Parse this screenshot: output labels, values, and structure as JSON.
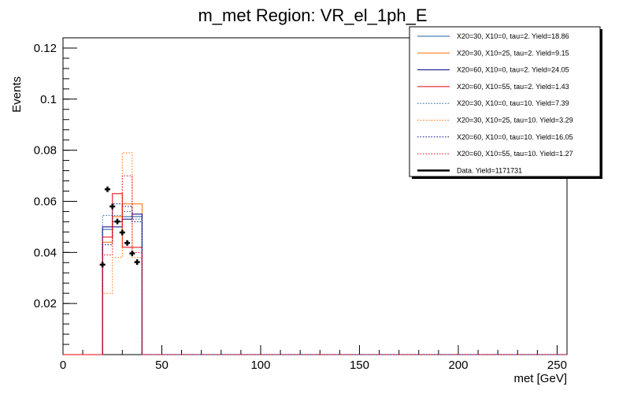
{
  "chart_data": {
    "type": "histogram",
    "title": "m_met Region: VR_el_1ph_E",
    "xlabel": "met [GeV]",
    "ylabel": "Events",
    "xlim": [
      0,
      255
    ],
    "ylim": [
      0,
      0.124
    ],
    "x_ticks": [
      0,
      50,
      100,
      150,
      200,
      250
    ],
    "x_tick_labels": [
      "0",
      "50",
      "100",
      "150",
      "200",
      "250"
    ],
    "y_ticks": [
      0.02,
      0.04,
      0.06,
      0.08,
      0.1,
      0.12
    ],
    "y_tick_labels": [
      "0.02",
      "0.04",
      "0.06",
      "0.08",
      "0.1",
      "0.12"
    ],
    "bin_edges": [
      20,
      25,
      30,
      35,
      40
    ],
    "series": [
      {
        "name": "X20=30, X10=0, tau=2. Yield=18.86",
        "color": "#1f5fa0",
        "style": "solid",
        "values": [
          0.049,
          0.052,
          0.054,
          0.054
        ]
      },
      {
        "name": "X20=30, X10=25, tau=2. Yield=9.15",
        "color": "#ff6a00",
        "style": "solid",
        "values": [
          0.044,
          0.054,
          0.059,
          0.059
        ]
      },
      {
        "name": "X20=60, X10=0, tau=2. Yield=24.05",
        "color": "#000080",
        "style": "solid",
        "values": [
          0.05,
          0.05,
          0.053,
          0.055
        ]
      },
      {
        "name": "X20=60, X10=55, tau=2. Yield=1.43",
        "color": "#e8000b",
        "style": "solid",
        "values": [
          0.046,
          0.063,
          0.042,
          0.042
        ]
      },
      {
        "name": "X20=30, X10=0, tau=10. Yield=7.39",
        "color": "#1f5fa0",
        "style": "dotted",
        "values": [
          0.0545,
          0.0545,
          0.056,
          0.053
        ]
      },
      {
        "name": "X20=30, X10=25, tau=10. Yield=3.29",
        "color": "#ff6a00",
        "style": "dotted",
        "values": [
          0.024,
          0.038,
          0.079,
          0.038
        ]
      },
      {
        "name": "X20=60, X10=0, tau=10. Yield=16.05",
        "color": "#000080",
        "style": "dotted",
        "values": [
          0.043,
          0.059,
          0.058,
          0.052
        ]
      },
      {
        "name": "X20=60, X10=55, tau=10. Yield=1.27",
        "color": "#e8000b",
        "style": "dotted",
        "values": [
          0.039,
          0.052,
          0.07,
          0.04
        ]
      }
    ],
    "data": {
      "name": "Data. Yield=1171731",
      "color": "#000000",
      "x": [
        20,
        22.5,
        25,
        27.5,
        30,
        32.5,
        35,
        37.5
      ],
      "y": [
        0.0352,
        0.0647,
        0.058,
        0.0521,
        0.0478,
        0.0437,
        0.0396,
        0.0362
      ]
    },
    "legend_position": "top-right"
  }
}
